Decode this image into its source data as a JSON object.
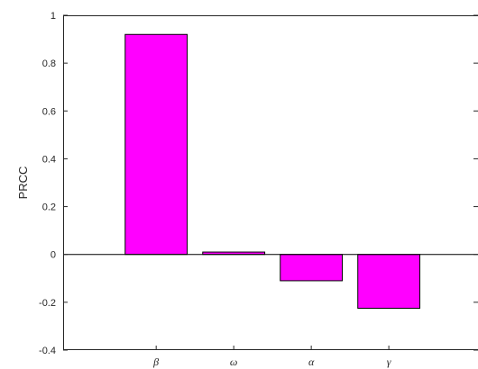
{
  "chart_data": {
    "type": "bar",
    "categories": [
      "β",
      "ω",
      "α",
      "γ"
    ],
    "values": [
      0.92,
      0.01,
      -0.11,
      -0.225
    ],
    "title": "",
    "xlabel": "",
    "ylabel": "PRCC",
    "ylim": [
      -0.4,
      1
    ],
    "yticks": [
      "-0.4",
      "-0.2",
      "0",
      "0.2",
      "0.4",
      "0.6",
      "0.8",
      "1"
    ],
    "bar_color": "#ff00ff",
    "grid": false,
    "legend": "none"
  }
}
